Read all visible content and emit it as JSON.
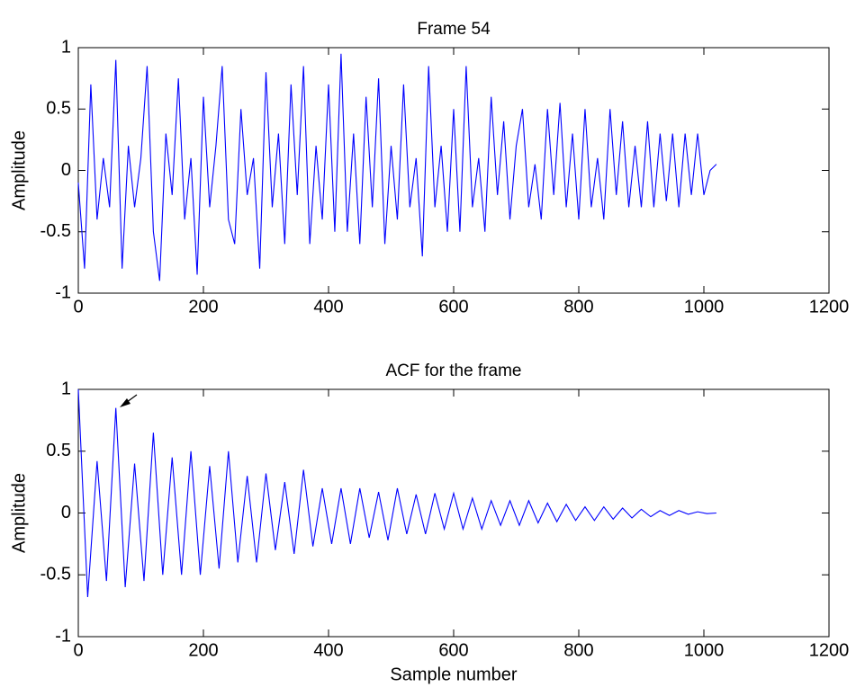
{
  "chart_data": [
    {
      "type": "line",
      "title": "Frame 54",
      "ylabel": "Amplitude",
      "color": "#0000ff",
      "x": [
        0,
        10,
        20,
        30,
        40,
        50,
        60,
        70,
        80,
        90,
        100,
        110,
        120,
        130,
        140,
        150,
        160,
        170,
        180,
        190,
        200,
        210,
        220,
        230,
        240,
        250,
        260,
        270,
        280,
        290,
        300,
        310,
        320,
        330,
        340,
        350,
        360,
        370,
        380,
        390,
        400,
        410,
        420,
        430,
        440,
        450,
        460,
        470,
        480,
        490,
        500,
        510,
        520,
        530,
        540,
        550,
        560,
        570,
        580,
        590,
        600,
        610,
        620,
        630,
        640,
        650,
        660,
        670,
        680,
        690,
        700,
        710,
        720,
        730,
        740,
        750,
        760,
        770,
        780,
        790,
        800,
        810,
        820,
        830,
        840,
        850,
        860,
        870,
        880,
        890,
        900,
        910,
        920,
        930,
        940,
        950,
        960,
        970,
        980,
        990,
        1000,
        1010,
        1020
      ],
      "values": [
        -0.1,
        -0.8,
        0.7,
        -0.4,
        0.1,
        -0.3,
        0.9,
        -0.8,
        0.2,
        -0.3,
        0.1,
        0.85,
        -0.5,
        -0.9,
        0.3,
        -0.2,
        0.75,
        -0.4,
        0.1,
        -0.85,
        0.6,
        -0.3,
        0.2,
        0.85,
        -0.4,
        -0.6,
        0.5,
        -0.2,
        0.1,
        -0.8,
        0.8,
        -0.3,
        0.3,
        -0.6,
        0.7,
        -0.2,
        0.85,
        -0.6,
        0.2,
        -0.4,
        0.7,
        -0.5,
        0.95,
        -0.5,
        0.3,
        -0.6,
        0.6,
        -0.3,
        0.75,
        -0.6,
        0.2,
        -0.4,
        0.7,
        -0.3,
        0.1,
        -0.7,
        0.85,
        -0.3,
        0.2,
        -0.5,
        0.5,
        -0.5,
        0.85,
        -0.3,
        0.1,
        -0.5,
        0.6,
        -0.2,
        0.4,
        -0.4,
        0.2,
        0.5,
        -0.3,
        0.05,
        -0.4,
        0.5,
        -0.2,
        0.55,
        -0.3,
        0.3,
        -0.4,
        0.5,
        -0.3,
        0.1,
        -0.4,
        0.5,
        -0.2,
        0.4,
        -0.3,
        0.2,
        -0.3,
        0.4,
        -0.3,
        0.3,
        -0.25,
        0.3,
        -0.3,
        0.3,
        -0.2,
        0.3,
        -0.2,
        0.0,
        0.05
      ],
      "xlim": [
        0,
        1200
      ],
      "xticks": [
        0,
        200,
        400,
        600,
        800,
        1000,
        1200
      ],
      "ylim": [
        -1,
        1
      ],
      "yticks": [
        -1,
        -0.5,
        0,
        0.5,
        1
      ]
    },
    {
      "type": "line",
      "title": "ACF for the frame",
      "xlabel": "Sample number",
      "ylabel": "Amplitude",
      "color": "#0000ff",
      "x": [
        0,
        15,
        30,
        45,
        60,
        75,
        90,
        105,
        120,
        135,
        150,
        165,
        180,
        195,
        210,
        225,
        240,
        255,
        270,
        285,
        300,
        315,
        330,
        345,
        360,
        375,
        390,
        405,
        420,
        435,
        450,
        465,
        480,
        495,
        510,
        525,
        540,
        555,
        570,
        585,
        600,
        615,
        630,
        645,
        660,
        675,
        690,
        705,
        720,
        735,
        750,
        765,
        780,
        795,
        810,
        825,
        840,
        855,
        870,
        885,
        900,
        915,
        930,
        945,
        960,
        975,
        990,
        1005,
        1020
      ],
      "values": [
        1,
        -0.68,
        0.42,
        -0.55,
        0.85,
        -0.6,
        0.4,
        -0.55,
        0.65,
        -0.5,
        0.45,
        -0.5,
        0.5,
        -0.5,
        0.38,
        -0.45,
        0.5,
        -0.4,
        0.3,
        -0.4,
        0.32,
        -0.3,
        0.25,
        -0.33,
        0.35,
        -0.27,
        0.2,
        -0.25,
        0.2,
        -0.25,
        0.2,
        -0.2,
        0.17,
        -0.22,
        0.2,
        -0.17,
        0.15,
        -0.17,
        0.16,
        -0.13,
        0.16,
        -0.13,
        0.12,
        -0.13,
        0.1,
        -0.1,
        0.1,
        -0.1,
        0.1,
        -0.08,
        0.08,
        -0.07,
        0.07,
        -0.06,
        0.05,
        -0.06,
        0.05,
        -0.05,
        0.04,
        -0.04,
        0.03,
        -0.03,
        0.02,
        -0.02,
        0.02,
        -0.01,
        0.01,
        -0.005,
        0
      ],
      "xlim": [
        0,
        1200
      ],
      "xticks": [
        0,
        200,
        400,
        600,
        800,
        1000,
        1200
      ],
      "ylim": [
        -1,
        1
      ],
      "yticks": [
        -1,
        -0.5,
        0,
        0.5,
        1
      ]
    }
  ]
}
